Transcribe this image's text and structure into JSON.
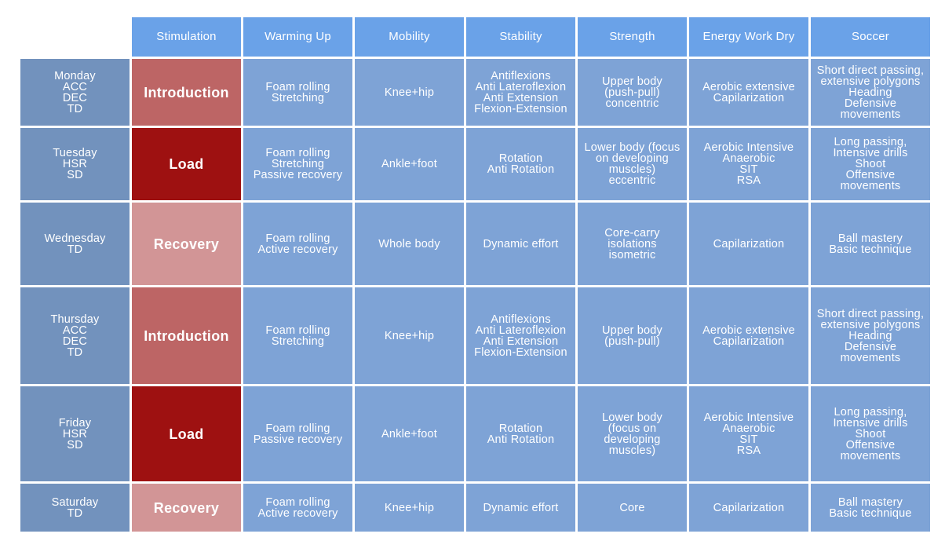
{
  "colors": {
    "header": "#6aa2e8",
    "day": "#7292bd",
    "cell": "#7ea3d6",
    "introduction": "#bd6565",
    "load": "#9e1111",
    "recovery": "#d29596",
    "text": "#ffffff"
  },
  "headers": [
    "Stimulation",
    "Warming Up",
    "Mobility",
    "Stability",
    "Strength",
    "Energy Work Dry",
    "Soccer"
  ],
  "rows": [
    {
      "day": [
        "Monday",
        "ACC",
        "DEC",
        "TD"
      ],
      "stimulation": "Introduction",
      "stim_type": "introduction",
      "cells": [
        [
          "Foam rolling",
          "Stretching"
        ],
        [
          "Knee+hip"
        ],
        [
          "Antiflexions",
          "Anti Lateroflexion",
          "Anti Extension",
          "Flexion-Extension"
        ],
        [
          "Upper body",
          "(push-pull)",
          "concentric"
        ],
        [
          "Aerobic extensive",
          "Capilarization"
        ],
        [
          "Short direct passing,",
          "extensive polygons",
          "Heading",
          "Defensive",
          "movements"
        ]
      ]
    },
    {
      "day": [
        "Tuesday",
        "HSR",
        "SD"
      ],
      "stimulation": "Load",
      "stim_type": "load",
      "cells": [
        [
          "Foam rolling",
          "Stretching",
          "Passive recovery"
        ],
        [
          "Ankle+foot"
        ],
        [
          "Rotation",
          "Anti Rotation"
        ],
        [
          "Lower body (focus",
          "on developing",
          "muscles)",
          "eccentric"
        ],
        [
          "Aerobic Intensive",
          "Anaerobic",
          "SIT",
          "RSA"
        ],
        [
          "Long passing,",
          "Intensive drills",
          "Shoot",
          "Offensive",
          "movements"
        ]
      ]
    },
    {
      "day": [
        "Wednesday",
        "TD"
      ],
      "stimulation": "Recovery",
      "stim_type": "recovery",
      "cells": [
        [
          "Foam rolling",
          "Active recovery"
        ],
        [
          "Whole body"
        ],
        [
          "Dynamic effort"
        ],
        [
          "Core-carry",
          "isolations",
          "isometric"
        ],
        [
          "Capilarization"
        ],
        [
          "Ball mastery",
          "Basic technique"
        ]
      ]
    },
    {
      "day": [
        "Thursday",
        "ACC",
        "DEC",
        "TD"
      ],
      "stimulation": "Introduction",
      "stim_type": "introduction",
      "cells": [
        [
          "Foam rolling",
          "Stretching"
        ],
        [
          "Knee+hip"
        ],
        [
          "Antiflexions",
          "Anti Lateroflexion",
          "Anti Extension",
          "Flexion-Extension"
        ],
        [
          "Upper body",
          "(push-pull)"
        ],
        [
          "Aerobic extensive",
          "Capilarization"
        ],
        [
          "Short direct passing,",
          "extensive polygons",
          "Heading",
          "Defensive",
          "movements"
        ]
      ]
    },
    {
      "day": [
        "Friday",
        "HSR",
        "SD"
      ],
      "stimulation": "Load",
      "stim_type": "load",
      "cells": [
        [
          "Foam rolling",
          "Passive recovery"
        ],
        [
          "Ankle+foot"
        ],
        [
          "Rotation",
          "Anti Rotation"
        ],
        [
          "Lower body",
          "(focus on",
          "developing",
          "muscles)"
        ],
        [
          "Aerobic Intensive",
          "Anaerobic",
          "SIT",
          "RSA"
        ],
        [
          "Long passing,",
          "Intensive drills",
          "Shoot",
          "Offensive",
          "movements"
        ]
      ]
    },
    {
      "day": [
        "Saturday",
        "TD"
      ],
      "stimulation": "Recovery",
      "stim_type": "recovery",
      "cells": [
        [
          "Foam rolling",
          "Active recovery"
        ],
        [
          "Knee+hip"
        ],
        [
          "Dynamic effort"
        ],
        [
          "Core"
        ],
        [
          "Capilarization"
        ],
        [
          "Ball mastery",
          "Basic technique"
        ]
      ]
    }
  ]
}
